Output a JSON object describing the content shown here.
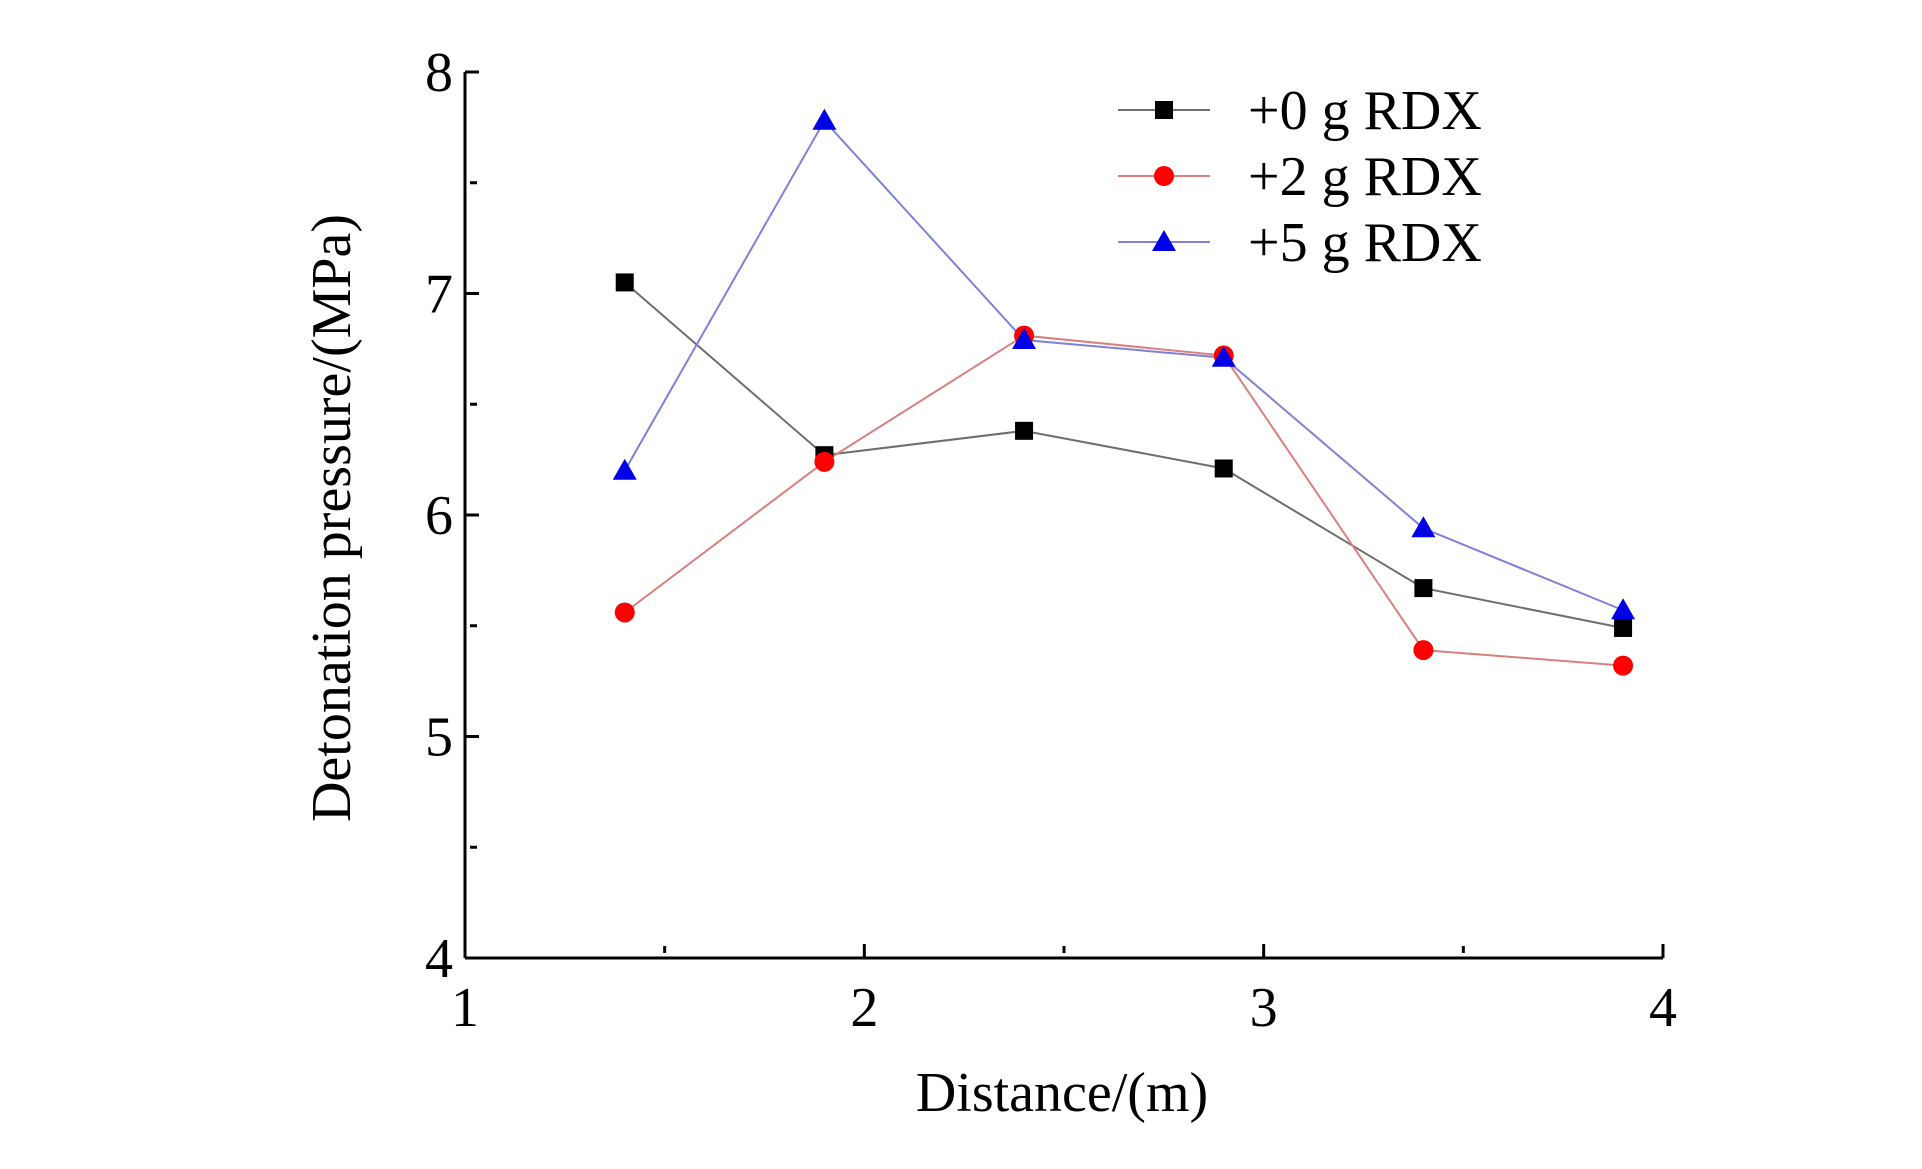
{
  "chart_data": {
    "type": "line",
    "title": "",
    "xlabel": "Distance/(m)",
    "ylabel": "Detonation pressure/(MPa)",
    "xlim": [
      1,
      4
    ],
    "ylim": [
      4,
      8
    ],
    "xticks": [
      1,
      2,
      3,
      4
    ],
    "xticks_minor": [
      1.5,
      2.5,
      3.5
    ],
    "yticks": [
      4,
      5,
      6,
      7,
      8
    ],
    "yticks_minor": [
      4.5,
      5.5,
      6.5,
      7.5
    ],
    "grid": false,
    "legend_position": "top-right",
    "x": [
      1.4,
      1.9,
      2.4,
      2.9,
      3.4,
      3.9
    ],
    "series": [
      {
        "name": "+0 g RDX",
        "marker": "square",
        "marker_color": "#000000",
        "line_color": "#6e6e6e",
        "values": [
          7.05,
          6.27,
          6.38,
          6.21,
          5.67,
          5.49
        ]
      },
      {
        "name": "+2 g RDX",
        "marker": "circle",
        "marker_color": "#ff0000",
        "line_color": "#d88080",
        "values": [
          5.56,
          6.24,
          6.81,
          6.72,
          5.39,
          5.32
        ]
      },
      {
        "name": "+5 g RDX",
        "marker": "triangle",
        "marker_color": "#0000e6",
        "line_color": "#8080d8",
        "values": [
          6.2,
          7.78,
          6.79,
          6.71,
          5.94,
          5.57
        ]
      }
    ]
  }
}
